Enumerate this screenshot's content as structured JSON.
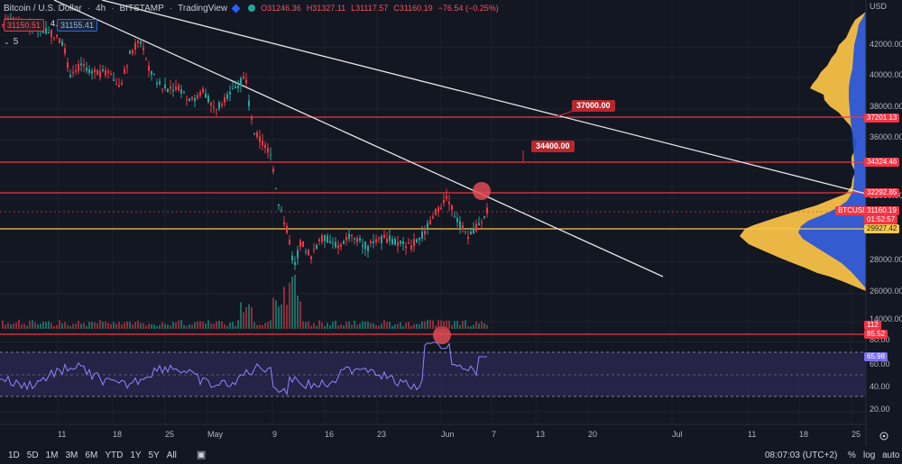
{
  "header": {
    "symbol": "Bitcoin / U.S. Dollar",
    "interval": "4h",
    "exchange": "BITSTAMP",
    "source": "TradingView",
    "ohlc": {
      "open": "O31246.36",
      "high": "H31327.11",
      "low": "L31117.57",
      "close": "C31160.19",
      "change": "−76.54 (−0.25%)"
    }
  },
  "quote": {
    "bid": "31150.51",
    "spread": "4.90",
    "ask": "31155.41",
    "small_count": "5"
  },
  "annotations": {
    "level_37000": "37000.00",
    "level_34400": "34400.00"
  },
  "price_axis": {
    "currency": "USD",
    "ticks": [
      "42000.00",
      "40000.00",
      "38000.00",
      "36000.00",
      "32000.00",
      "28000.00",
      "26000.00",
      "14000.00",
      "80.00",
      "60.00",
      "40.00",
      "20.00"
    ],
    "badges": {
      "b37201": "37201.13",
      "b34324": "34324.46",
      "b32292": "32292.85",
      "btcusd": "BTCUSD",
      "price": "31160.19",
      "timer": "01:52:57",
      "b29927": "29927.42",
      "vol": "112",
      "rsi1": "85.52",
      "rsi2": "65.98"
    }
  },
  "time_axis": {
    "labels": [
      "11",
      "18",
      "25",
      "May",
      "9",
      "16",
      "23",
      "Jun",
      "7",
      "13",
      "20",
      "Jul",
      "11",
      "18",
      "25"
    ]
  },
  "toolbar": {
    "ranges": [
      "1D",
      "5D",
      "1M",
      "3M",
      "6M",
      "YTD",
      "1Y",
      "5Y",
      "All"
    ],
    "time": "08:07:03 (UTC+2)",
    "percent": "%",
    "log": "log",
    "auto": "auto"
  },
  "colors": {
    "background": "#131722",
    "grid": "#2a2e39",
    "red": "#f23645",
    "yellow": "#f7c948",
    "blue": "#2962ff",
    "green": "#26a69a"
  }
}
